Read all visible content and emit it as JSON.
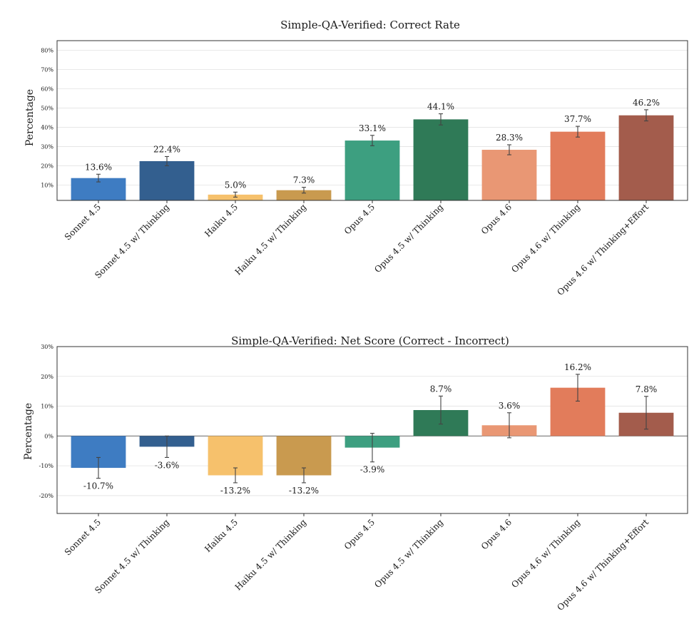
{
  "chart_data": [
    {
      "type": "bar",
      "title": "Simple-QA-Verified: Correct Rate",
      "ylabel": "Percentage",
      "ylim": [
        2,
        85
      ],
      "yticks": [
        "10%",
        "20%",
        "30%",
        "40%",
        "50%",
        "60%",
        "70%",
        "80%"
      ],
      "ytick_values": [
        10,
        20,
        30,
        40,
        50,
        60,
        70,
        80
      ],
      "grid": true,
      "categories": [
        "Sonnet 4.5",
        "Sonnet 4.5 w/ Thinking",
        "Haiku 4.5",
        "Haiku 4.5 w/ Thinking",
        "Opus 4.5",
        "Opus 4.5 w/ Thinking",
        "Opus 4.6",
        "Opus 4.6 w/ Thinking",
        "Opus 4.6 w/ Thinking+Effort"
      ],
      "values": [
        13.6,
        22.4,
        5.0,
        7.3,
        33.1,
        44.1,
        28.3,
        37.7,
        46.2
      ],
      "labels": [
        "13.6%",
        "22.4%",
        "5.0%",
        "7.3%",
        "33.1%",
        "44.1%",
        "28.3%",
        "37.7%",
        "46.2%"
      ],
      "errors": [
        2.0,
        2.4,
        1.3,
        1.5,
        2.7,
        2.9,
        2.6,
        2.8,
        2.9
      ],
      "colors": [
        "#3e7cc2",
        "#335f8f",
        "#f6c16c",
        "#c99a4f",
        "#3d9f80",
        "#2f7a57",
        "#e99774",
        "#e27c5b",
        "#a35c4c"
      ]
    },
    {
      "type": "bar",
      "title": "Simple-QA-Verified: Net Score (Correct - Incorrect)",
      "ylabel": "Percentage",
      "ylim": [
        -26,
        30
      ],
      "yticks": [
        "-20%",
        "-10%",
        "0%",
        "10%",
        "20%",
        "30%"
      ],
      "ytick_values": [
        -20,
        -10,
        0,
        10,
        20,
        30
      ],
      "grid": true,
      "categories": [
        "Sonnet 4.5",
        "Sonnet 4.5 w/ Thinking",
        "Haiku 4.5",
        "Haiku 4.5 w/ Thinking",
        "Opus 4.5",
        "Opus 4.5 w/ Thinking",
        "Opus 4.6",
        "Opus 4.6 w/ Thinking",
        "Opus 4.6 w/ Thinking+Effort"
      ],
      "values": [
        -10.7,
        -3.6,
        -13.2,
        -13.2,
        -3.9,
        8.7,
        3.6,
        16.2,
        7.8
      ],
      "labels": [
        "-10.7%",
        "-3.6%",
        "-13.2%",
        "-13.2%",
        "-3.9%",
        "8.7%",
        "3.6%",
        "16.2%",
        "7.8%"
      ],
      "errors": [
        3.5,
        3.6,
        2.5,
        2.5,
        4.8,
        4.7,
        4.2,
        4.5,
        5.5
      ],
      "colors": [
        "#3e7cc2",
        "#335f8f",
        "#f6c16c",
        "#c99a4f",
        "#3d9f80",
        "#2f7a57",
        "#e99774",
        "#e27c5b",
        "#a35c4c"
      ]
    }
  ]
}
